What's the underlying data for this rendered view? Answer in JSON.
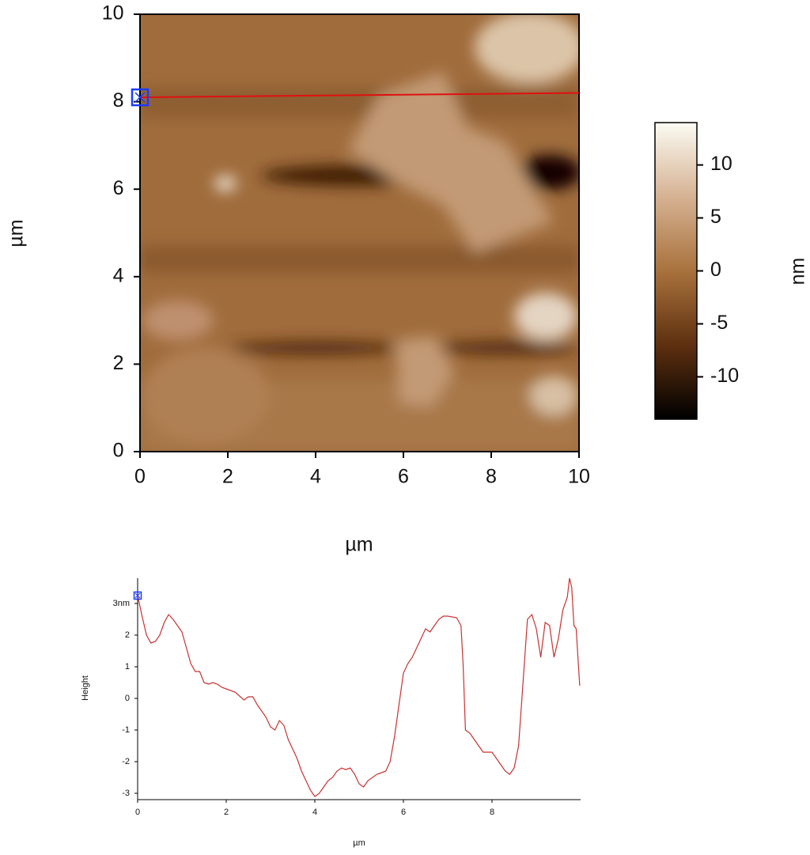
{
  "chart_data": [
    {
      "type": "image",
      "xlabel": "µm",
      "ylabel": "µm",
      "xlim": [
        0,
        10
      ],
      "ylim": [
        0,
        10
      ],
      "xticks": [
        0,
        2,
        4,
        6,
        8,
        10
      ],
      "yticks": [
        0,
        2,
        4,
        6,
        8,
        10
      ],
      "colorbar": {
        "label": "nm",
        "lim": [
          -14,
          14
        ],
        "ticks": [
          -10,
          -5,
          0,
          5,
          10
        ],
        "colormap": [
          "#000000",
          "#5e3010",
          "#a8723c",
          "#d6b293",
          "#fbfbf3"
        ]
      },
      "profile": {
        "x": [
          0,
          10
        ],
        "y": [
          8.1,
          8.2
        ],
        "color": "#e01010"
      },
      "marker_color": "#1a3cff"
    },
    {
      "type": "line",
      "ylabel": "Height",
      "xlabel": "µm",
      "xlim": [
        0,
        10
      ],
      "ylim": [
        -3.2,
        3.8
      ],
      "xticks": [
        0,
        2,
        4,
        6,
        8
      ],
      "yticks": [
        -3,
        -2,
        -1,
        0,
        1,
        2,
        {
          "value": 3,
          "label": "3nm"
        }
      ],
      "color": "#c83232",
      "marker_color": "#1a3cff",
      "x": [
        0,
        0.1,
        0.2,
        0.3,
        0.4,
        0.5,
        0.6,
        0.7,
        0.8,
        0.9,
        1.0,
        1.1,
        1.2,
        1.3,
        1.4,
        1.5,
        1.6,
        1.7,
        1.8,
        1.9,
        2.0,
        2.2,
        2.4,
        2.5,
        2.6,
        2.7,
        2.8,
        2.9,
        3.0,
        3.1,
        3.2,
        3.3,
        3.4,
        3.5,
        3.6,
        3.7,
        3.8,
        3.9,
        4.0,
        4.1,
        4.2,
        4.3,
        4.4,
        4.5,
        4.6,
        4.7,
        4.8,
        4.9,
        5.0,
        5.1,
        5.2,
        5.4,
        5.6,
        5.7,
        5.8,
        5.9,
        6.0,
        6.1,
        6.2,
        6.3,
        6.4,
        6.5,
        6.6,
        6.7,
        6.8,
        6.9,
        7.0,
        7.2,
        7.3,
        7.35,
        7.4,
        7.5,
        7.6,
        7.7,
        7.8,
        7.9,
        8.0,
        8.1,
        8.2,
        8.3,
        8.4,
        8.5,
        8.6,
        8.7,
        8.8,
        8.9,
        9.0,
        9.1,
        9.2,
        9.3,
        9.4,
        9.5,
        9.6,
        9.7,
        9.75,
        9.8,
        9.85,
        9.9,
        9.98
      ],
      "values": [
        3.25,
        2.6,
        2.0,
        1.75,
        1.8,
        2.0,
        2.4,
        2.65,
        2.5,
        2.3,
        2.1,
        1.6,
        1.1,
        0.85,
        0.85,
        0.5,
        0.45,
        0.5,
        0.45,
        0.35,
        0.3,
        0.2,
        -0.05,
        0.05,
        0.05,
        -0.2,
        -0.4,
        -0.6,
        -0.9,
        -1.0,
        -0.7,
        -0.85,
        -1.3,
        -1.6,
        -1.9,
        -2.3,
        -2.6,
        -2.9,
        -3.1,
        -3.0,
        -2.8,
        -2.6,
        -2.5,
        -2.3,
        -2.2,
        -2.25,
        -2.2,
        -2.4,
        -2.7,
        -2.8,
        -2.6,
        -2.4,
        -2.3,
        -2.0,
        -1.2,
        -0.2,
        0.8,
        1.1,
        1.3,
        1.6,
        1.9,
        2.2,
        2.1,
        2.3,
        2.5,
        2.6,
        2.6,
        2.55,
        2.3,
        1.0,
        -1.0,
        -1.1,
        -1.3,
        -1.5,
        -1.7,
        -1.7,
        -1.7,
        -1.9,
        -2.1,
        -2.3,
        -2.4,
        -2.2,
        -1.5,
        0.5,
        2.5,
        2.65,
        2.2,
        1.3,
        2.4,
        2.3,
        1.3,
        1.9,
        2.8,
        3.2,
        3.8,
        3.5,
        2.3,
        2.2,
        0.4
      ]
    }
  ]
}
